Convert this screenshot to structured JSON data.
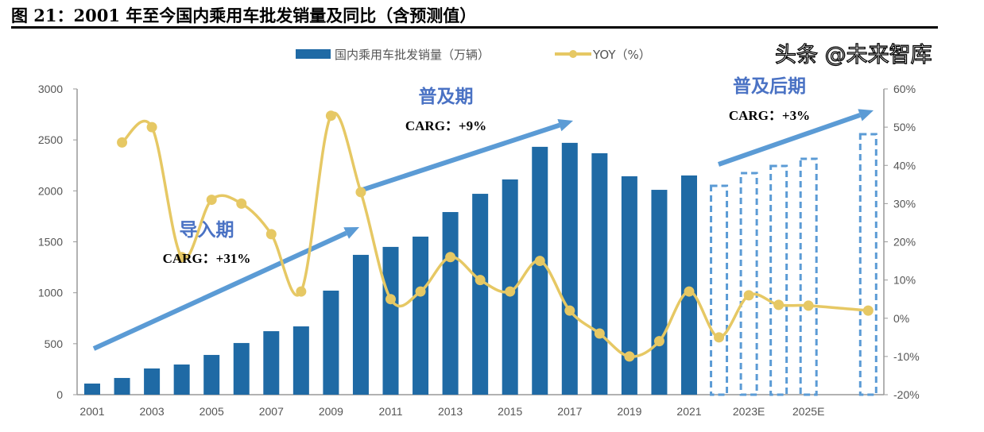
{
  "title": "图 21：2001 年至今国内乘用车批发销量及同比（含预测值）",
  "watermark": "头条 @未来智库",
  "chart_data": {
    "type": "bar+line",
    "title": "",
    "categories": [
      "2001",
      "2002",
      "2003",
      "2004",
      "2005",
      "2006",
      "2007",
      "2008",
      "2009",
      "2010",
      "2011",
      "2012",
      "2013",
      "2014",
      "2015",
      "2016",
      "2017",
      "2018",
      "2019",
      "2020",
      "2021",
      "2022E",
      "2023E",
      "2024E",
      "2025E",
      "2030E"
    ],
    "tick_labels": [
      "2001",
      "2003",
      "2005",
      "2007",
      "2009",
      "2011",
      "2013",
      "2015",
      "2017",
      "2019",
      "2021",
      "2023E",
      "2025E"
    ],
    "series": [
      {
        "name": "国内乘用车批发销量（万辆）",
        "type": "bar",
        "axis": "left",
        "color": "#1f6aa5",
        "forecast_style": "dashed outline #5b9bd5",
        "values": [
          109,
          164,
          257,
          296,
          390,
          507,
          623,
          670,
          1021,
          1372,
          1450,
          1551,
          1792,
          1971,
          2112,
          2432,
          2471,
          2369,
          2143,
          2010,
          2151,
          2049,
          2174,
          2244,
          2314,
          2556
        ]
      },
      {
        "name": "YOY（%）",
        "type": "line",
        "axis": "right",
        "color": "#e6c864",
        "values": [
          null,
          46,
          50,
          16,
          31,
          30,
          22,
          7,
          53,
          33,
          5,
          7,
          16,
          10,
          7,
          15,
          2,
          -4,
          -10,
          -6,
          7,
          -5,
          6,
          3.5,
          3.3,
          2
        ]
      }
    ],
    "left_axis": {
      "min": 0,
      "max": 3000,
      "ticks": [
        "0",
        "500",
        "1000",
        "1500",
        "2000",
        "2500",
        "3000"
      ]
    },
    "right_axis": {
      "min": -20,
      "max": 60,
      "ticks": [
        "-20%",
        "-10%",
        "0%",
        "10%",
        "20%",
        "30%",
        "40%",
        "50%",
        "60%"
      ]
    },
    "legend_position": "top",
    "annotations": [
      {
        "label": "导入期",
        "carg": "CARG：+31%"
      },
      {
        "label": "普及期",
        "carg": "CARG：+9%"
      },
      {
        "label": "普及后期",
        "carg": "CARG：+3%"
      }
    ],
    "arrow_color": "#5b9bd5"
  }
}
